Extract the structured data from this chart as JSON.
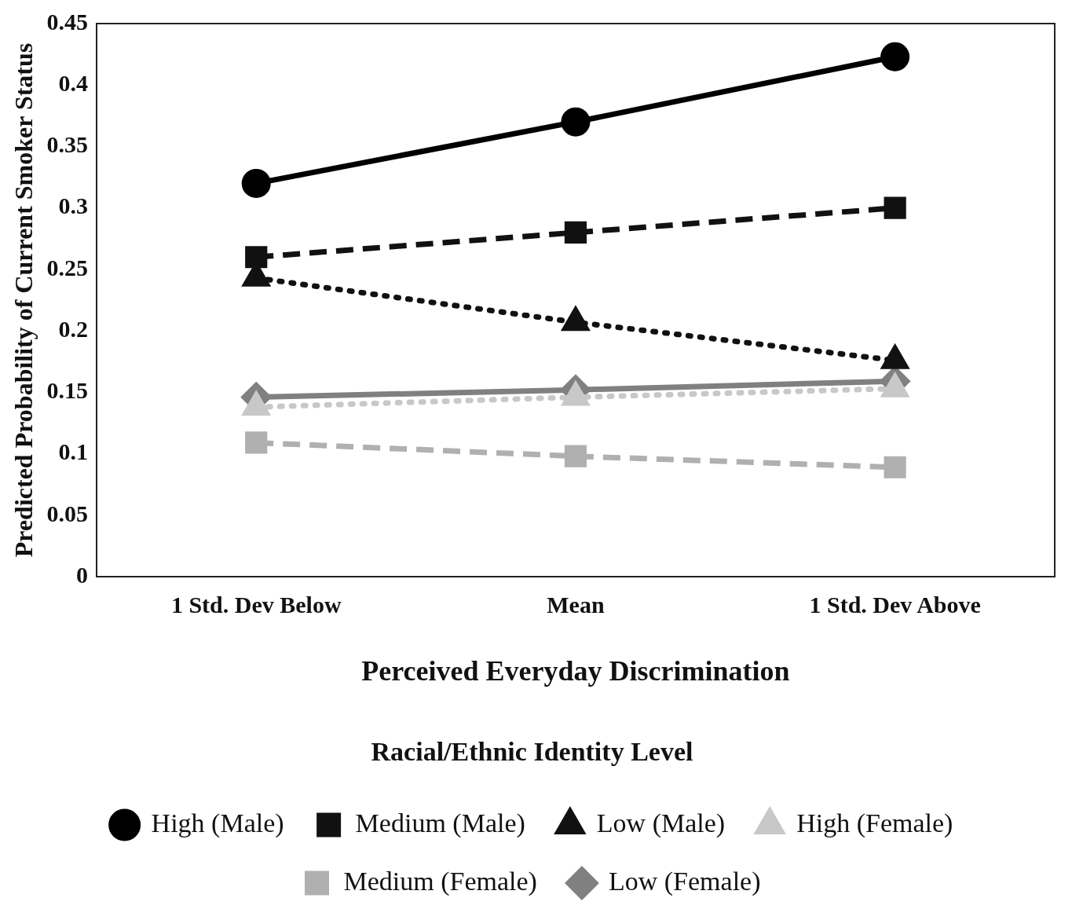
{
  "chart_data": {
    "type": "line",
    "xlabel": "Perceived Everyday Discrimination",
    "ylabel": "Predicted Probability of Current Smoker Status",
    "legend_title": "Racial/Ethnic Identity Level",
    "legend": "bottom",
    "grid": false,
    "categories": [
      "1 Std. Dev Below",
      "Mean",
      "1 Std. Dev Above"
    ],
    "ylim": [
      0,
      0.45
    ],
    "yticks": [
      0,
      0.05,
      0.1,
      0.15,
      0.2,
      0.25,
      0.3,
      0.35,
      0.4,
      0.45
    ],
    "series": [
      {
        "name": "Low (Female)",
        "color": "#808080",
        "marker": "diamond",
        "line_style": "solid",
        "values": [
          0.146,
          0.152,
          0.159
        ]
      },
      {
        "name": "Medium (Female)",
        "color": "#b0b0b0",
        "marker": "square",
        "line_style": "dashed",
        "values": [
          0.109,
          0.098,
          0.089
        ]
      },
      {
        "name": "High (Female)",
        "color": "#c8c8c8",
        "marker": "triangle",
        "line_style": "dotted",
        "values": [
          0.138,
          0.146,
          0.153
        ]
      },
      {
        "name": "Low (Male)",
        "color": "#111111",
        "marker": "triangle",
        "line_style": "dotted",
        "values": [
          0.243,
          0.207,
          0.176
        ]
      },
      {
        "name": "Medium (Male)",
        "color": "#111111",
        "marker": "square",
        "line_style": "dashed",
        "values": [
          0.26,
          0.28,
          0.3
        ]
      },
      {
        "name": "High (Male)",
        "color": "#000000",
        "marker": "circle",
        "line_style": "solid",
        "values": [
          0.32,
          0.37,
          0.423
        ]
      }
    ]
  }
}
